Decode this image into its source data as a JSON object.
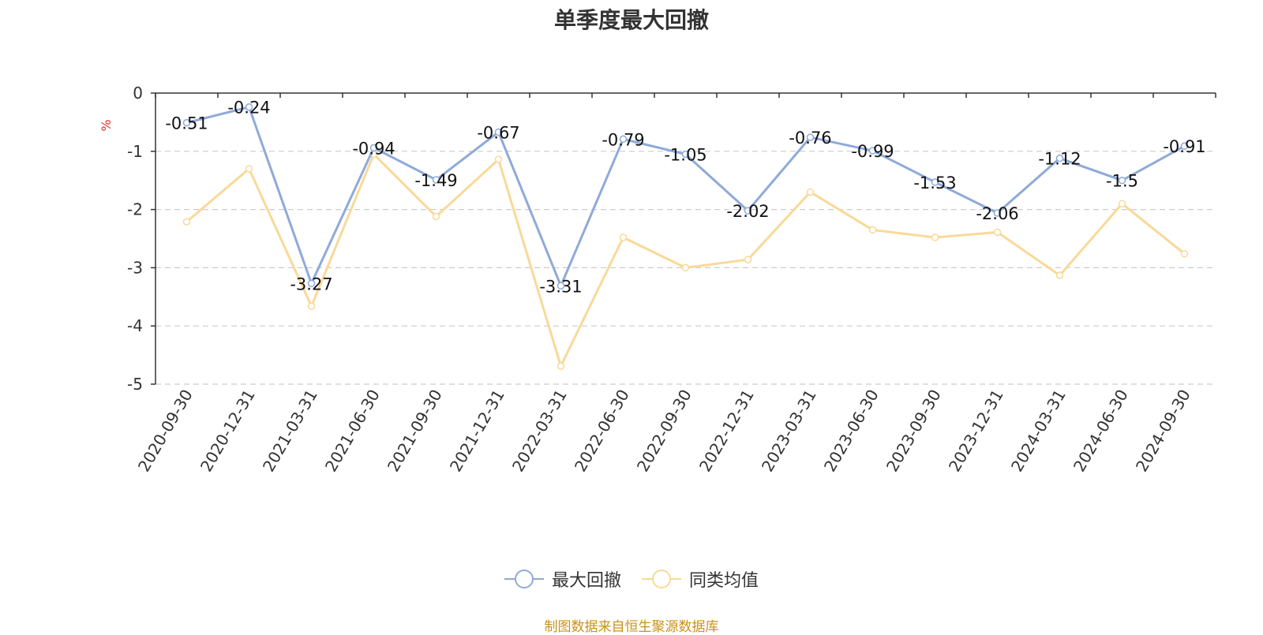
{
  "title": "单季度最大回撤",
  "source": "制图数据来自恒生聚源数据库",
  "colors": {
    "series_main": "#8eaad8",
    "series_peer": "#f9d998",
    "grid": "#cccccc",
    "axis": "#333333"
  },
  "chart_data": {
    "type": "line",
    "title": "单季度最大回撤",
    "ylabel": "%",
    "ylim": [
      -5,
      0
    ],
    "yticks": [
      0,
      -1,
      -2,
      -3,
      -4,
      -5
    ],
    "grid": true,
    "legend_position": "bottom",
    "categories": [
      "2020-09-30",
      "2020-12-31",
      "2021-03-31",
      "2021-06-30",
      "2021-09-30",
      "2021-12-31",
      "2022-03-31",
      "2022-06-30",
      "2022-09-30",
      "2022-12-31",
      "2023-03-31",
      "2023-06-30",
      "2023-09-30",
      "2023-12-31",
      "2024-03-31",
      "2024-06-30",
      "2024-09-30"
    ],
    "series": [
      {
        "name": "最大回撤",
        "color": "#8eaad8",
        "labels": true,
        "values": [
          -0.51,
          -0.24,
          -3.27,
          -0.94,
          -1.49,
          -0.67,
          -3.31,
          -0.79,
          -1.05,
          -2.02,
          -0.76,
          -0.99,
          -1.53,
          -2.06,
          -1.12,
          -1.5,
          -0.91
        ]
      },
      {
        "name": "同类均值",
        "color": "#f9d998",
        "labels": false,
        "values": [
          -2.21,
          -1.3,
          -3.66,
          -1.05,
          -2.12,
          -1.14,
          -4.69,
          -2.48,
          -3.0,
          -2.86,
          -1.7,
          -2.35,
          -2.48,
          -2.39,
          -3.13,
          -1.9,
          -2.76
        ]
      }
    ]
  }
}
